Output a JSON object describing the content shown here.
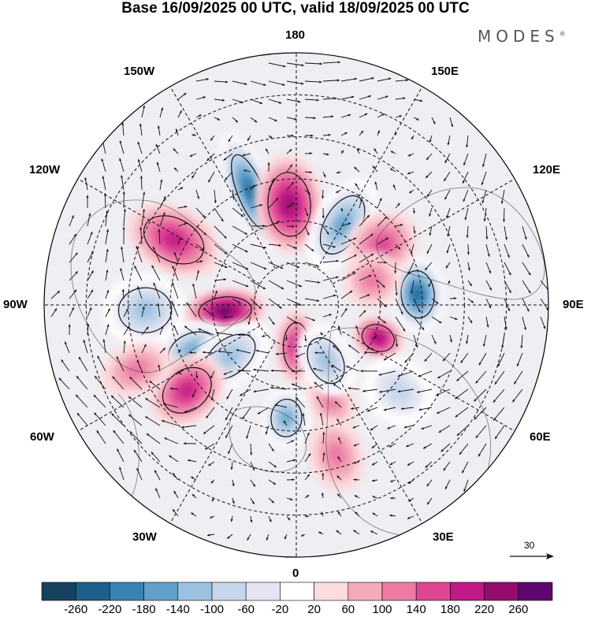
{
  "title": "Base 16/09/2025 00 UTC, valid 18/09/2025 00 UTC",
  "brand": "MODES",
  "brand_mark": "®",
  "longitude_labels": {
    "top": "180",
    "bottom": "0",
    "left": "90W",
    "right": "90E",
    "upper_left_1": "150W",
    "upper_left_2": "120W",
    "lower_left_1": "60W",
    "lower_left_2": "30W",
    "upper_right_1": "150E",
    "upper_right_2": "120E",
    "lower_right_1": "60E",
    "lower_right_2": "30E"
  },
  "reference_vector": "30",
  "colorbar": {
    "colors": [
      "#16415f",
      "#1d5f8b",
      "#3b82b4",
      "#62a0cc",
      "#9cc1e0",
      "#c6d6ea",
      "#e4e4f2",
      "#ffffff",
      "#fbdcdf",
      "#f4aab9",
      "#ec7aa4",
      "#e04594",
      "#c11a86",
      "#950b6e",
      "#5f0570"
    ],
    "ticks": [
      "-260",
      "-220",
      "-180",
      "-140",
      "-100",
      "-60",
      "-20",
      "20",
      "60",
      "100",
      "140",
      "180",
      "220",
      "260"
    ]
  },
  "anomalies": [
    {
      "lon": -158,
      "colat": 29,
      "value": -250,
      "rx": 22,
      "ry": 72
    },
    {
      "lon": -176,
      "colat": 24,
      "value": 210,
      "rx": 36,
      "ry": 58
    },
    {
      "lon": 150,
      "colat": 22,
      "value": -170,
      "rx": 30,
      "ry": 58
    },
    {
      "lon": -118,
      "colat": 33,
      "value": 190,
      "rx": 36,
      "ry": 58
    },
    {
      "lon": -88,
      "colat": 36,
      "value": -150,
      "rx": 38,
      "ry": 48
    },
    {
      "lon": -85,
      "colat": 17,
      "value": 250,
      "rx": 24,
      "ry": 48
    },
    {
      "lon": -66,
      "colat": 27,
      "value": -160,
      "rx": 30,
      "ry": 46
    },
    {
      "lon": -52,
      "colat": 20,
      "value": -140,
      "rx": 30,
      "ry": 52
    },
    {
      "lon": -52,
      "colat": 33,
      "value": 170,
      "rx": 34,
      "ry": 48
    },
    {
      "lon": -68,
      "colat": 41,
      "value": 100,
      "rx": 28,
      "ry": 44
    },
    {
      "lon": 0,
      "colat": 10,
      "value": 170,
      "rx": 22,
      "ry": 44
    },
    {
      "lon": -5,
      "colat": 27,
      "value": -190,
      "rx": 26,
      "ry": 34
    },
    {
      "lon": 20,
      "colat": 24,
      "value": 110,
      "rx": 24,
      "ry": 40
    },
    {
      "lon": 28,
      "colat": 15,
      "value": -140,
      "rx": 28,
      "ry": 44
    },
    {
      "lon": 95,
      "colat": 29,
      "value": -250,
      "rx": 40,
      "ry": 30
    },
    {
      "lon": 68,
      "colat": 21,
      "value": 200,
      "rx": 22,
      "ry": 30
    },
    {
      "lon": 125,
      "colat": 25,
      "value": 130,
      "rx": 34,
      "ry": 44
    },
    {
      "lon": 108,
      "colat": 19,
      "value": 100,
      "rx": 30,
      "ry": 34
    },
    {
      "lon": 50,
      "colat": 32,
      "value": -80,
      "rx": 34,
      "ry": 44
    },
    {
      "lon": 15,
      "colat": 37,
      "value": 100,
      "rx": 30,
      "ry": 44
    }
  ]
}
